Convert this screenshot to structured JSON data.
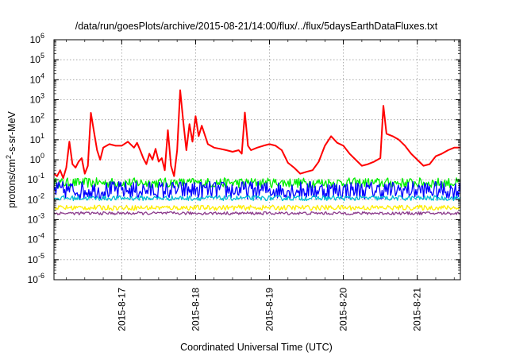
{
  "chart_data": {
    "type": "line",
    "title": "/data/run/goesPlots/archive/2015-08-21/14:00/flux/../flux/5daysEarthDataFluxes.txt",
    "xlabel": "Coordinated Universal Time (UTC)",
    "ylabel": {
      "prefix": "protons/cm",
      "sup": "2",
      "suffix": "-s-sr-MeV"
    },
    "y_scale": "log",
    "ylim": [
      1e-06,
      1000000.0
    ],
    "y_ticks": [
      {
        "value": 1e-06,
        "base": "10",
        "exp": "-6"
      },
      {
        "value": 1e-05,
        "base": "10",
        "exp": "-5"
      },
      {
        "value": 0.0001,
        "base": "10",
        "exp": "-4"
      },
      {
        "value": 0.001,
        "base": "10",
        "exp": "-3"
      },
      {
        "value": 0.01,
        "base": "10",
        "exp": "-2"
      },
      {
        "value": 0.1,
        "base": "10",
        "exp": "-1"
      },
      {
        "value": 1.0,
        "base": "10",
        "exp": "0"
      },
      {
        "value": 10.0,
        "base": "10",
        "exp": "1"
      },
      {
        "value": 100.0,
        "base": "10",
        "exp": "2"
      },
      {
        "value": 1000.0,
        "base": "10",
        "exp": "3"
      },
      {
        "value": 10000.0,
        "base": "10",
        "exp": "4"
      },
      {
        "value": 100000.0,
        "base": "10",
        "exp": "5"
      },
      {
        "value": 1000000.0,
        "base": "10",
        "exp": "6"
      }
    ],
    "xlim": [
      "2015-08-16 02:00",
      "2015-08-21 14:00"
    ],
    "x_ticks": [
      {
        "label": "2015-8-17",
        "t": "2015-08-17 00:00"
      },
      {
        "label": "2015-8-18",
        "t": "2015-08-18 00:00"
      },
      {
        "label": "2015-8-19",
        "t": "2015-08-19 00:00"
      },
      {
        "label": "2015-8-20",
        "t": "2015-08-20 00:00"
      },
      {
        "label": "2015-8-21",
        "t": "2015-08-21 00:00"
      }
    ],
    "grid": true,
    "series": [
      {
        "color": "#ff0000",
        "points": [
          [
            "2015-08-16 02:00",
            0.2
          ],
          [
            "2015-08-16 03:00",
            0.15
          ],
          [
            "2015-08-16 04:00",
            0.3
          ],
          [
            "2015-08-16 05:00",
            0.12
          ],
          [
            "2015-08-16 06:00",
            0.4
          ],
          [
            "2015-08-16 07:00",
            8
          ],
          [
            "2015-08-16 08:00",
            0.6
          ],
          [
            "2015-08-16 09:00",
            0.4
          ],
          [
            "2015-08-16 10:00",
            0.8
          ],
          [
            "2015-08-16 11:00",
            1.2
          ],
          [
            "2015-08-16 12:00",
            0.2
          ],
          [
            "2015-08-16 13:00",
            0.5
          ],
          [
            "2015-08-16 14:00",
            220
          ],
          [
            "2015-08-16 15:00",
            25
          ],
          [
            "2015-08-16 16:00",
            3
          ],
          [
            "2015-08-16 17:00",
            1
          ],
          [
            "2015-08-16 18:00",
            4
          ],
          [
            "2015-08-16 20:00",
            6
          ],
          [
            "2015-08-16 22:00",
            5
          ],
          [
            "2015-08-17 00:00",
            5
          ],
          [
            "2015-08-17 02:00",
            8
          ],
          [
            "2015-08-17 04:00",
            4
          ],
          [
            "2015-08-17 05:00",
            7
          ],
          [
            "2015-08-17 06:00",
            3
          ],
          [
            "2015-08-17 07:00",
            1.2
          ],
          [
            "2015-08-17 08:00",
            0.6
          ],
          [
            "2015-08-17 09:00",
            2
          ],
          [
            "2015-08-17 10:00",
            1
          ],
          [
            "2015-08-17 11:00",
            3.5
          ],
          [
            "2015-08-17 12:00",
            0.8
          ],
          [
            "2015-08-17 13:00",
            1.2
          ],
          [
            "2015-08-17 14:00",
            0.3
          ],
          [
            "2015-08-17 15:00",
            30
          ],
          [
            "2015-08-17 16:00",
            0.5
          ],
          [
            "2015-08-17 17:00",
            0.15
          ],
          [
            "2015-08-17 18:00",
            3
          ],
          [
            "2015-08-17 19:00",
            3000
          ],
          [
            "2015-08-17 20:00",
            80
          ],
          [
            "2015-08-17 21:00",
            3
          ],
          [
            "2015-08-17 22:00",
            60
          ],
          [
            "2015-08-17 23:00",
            8
          ],
          [
            "2015-08-18 00:00",
            150
          ],
          [
            "2015-08-18 01:00",
            15
          ],
          [
            "2015-08-18 02:00",
            50
          ],
          [
            "2015-08-18 04:00",
            6
          ],
          [
            "2015-08-18 06:00",
            4
          ],
          [
            "2015-08-18 08:00",
            3.5
          ],
          [
            "2015-08-18 10:00",
            3
          ],
          [
            "2015-08-18 12:00",
            2.5
          ],
          [
            "2015-08-18 14:00",
            3
          ],
          [
            "2015-08-18 15:00",
            2
          ],
          [
            "2015-08-18 16:00",
            230
          ],
          [
            "2015-08-18 17:00",
            5
          ],
          [
            "2015-08-18 18:00",
            3
          ],
          [
            "2015-08-18 20:00",
            4
          ],
          [
            "2015-08-18 22:00",
            5
          ],
          [
            "2015-08-19 00:00",
            6
          ],
          [
            "2015-08-19 02:00",
            5
          ],
          [
            "2015-08-19 04:00",
            3
          ],
          [
            "2015-08-19 06:00",
            0.7
          ],
          [
            "2015-08-19 08:00",
            0.4
          ],
          [
            "2015-08-19 10:00",
            0.2
          ],
          [
            "2015-08-19 12:00",
            0.25
          ],
          [
            "2015-08-19 14:00",
            0.3
          ],
          [
            "2015-08-19 16:00",
            0.8
          ],
          [
            "2015-08-19 18:00",
            5
          ],
          [
            "2015-08-19 20:00",
            15
          ],
          [
            "2015-08-19 22:00",
            7
          ],
          [
            "2015-08-20 00:00",
            5
          ],
          [
            "2015-08-20 02:00",
            2
          ],
          [
            "2015-08-20 04:00",
            1
          ],
          [
            "2015-08-20 06:00",
            0.5
          ],
          [
            "2015-08-20 08:00",
            0.6
          ],
          [
            "2015-08-20 10:00",
            0.8
          ],
          [
            "2015-08-20 12:00",
            1.2
          ],
          [
            "2015-08-20 13:00",
            500
          ],
          [
            "2015-08-20 14:00",
            20
          ],
          [
            "2015-08-20 16:00",
            15
          ],
          [
            "2015-08-20 18:00",
            10
          ],
          [
            "2015-08-20 20:00",
            5
          ],
          [
            "2015-08-20 22:00",
            2
          ],
          [
            "2015-08-21 00:00",
            1
          ],
          [
            "2015-08-21 02:00",
            0.5
          ],
          [
            "2015-08-21 04:00",
            0.6
          ],
          [
            "2015-08-21 06:00",
            1.5
          ],
          [
            "2015-08-21 08:00",
            2
          ],
          [
            "2015-08-21 10:00",
            3
          ],
          [
            "2015-08-21 12:00",
            4
          ],
          [
            "2015-08-21 14:00",
            4
          ]
        ]
      },
      {
        "color": "#00ee00",
        "base": 0.07,
        "spread": 0.5
      },
      {
        "color": "#0000ff",
        "base": 0.03,
        "spread": 0.9
      },
      {
        "color": "#00bcd4",
        "base": 0.012,
        "spread": 0.25
      },
      {
        "color": "#ffee00",
        "base": 0.004,
        "spread": 0.25
      },
      {
        "color": "#8b3a8b",
        "base": 0.0021,
        "spread": 0.15
      }
    ]
  }
}
